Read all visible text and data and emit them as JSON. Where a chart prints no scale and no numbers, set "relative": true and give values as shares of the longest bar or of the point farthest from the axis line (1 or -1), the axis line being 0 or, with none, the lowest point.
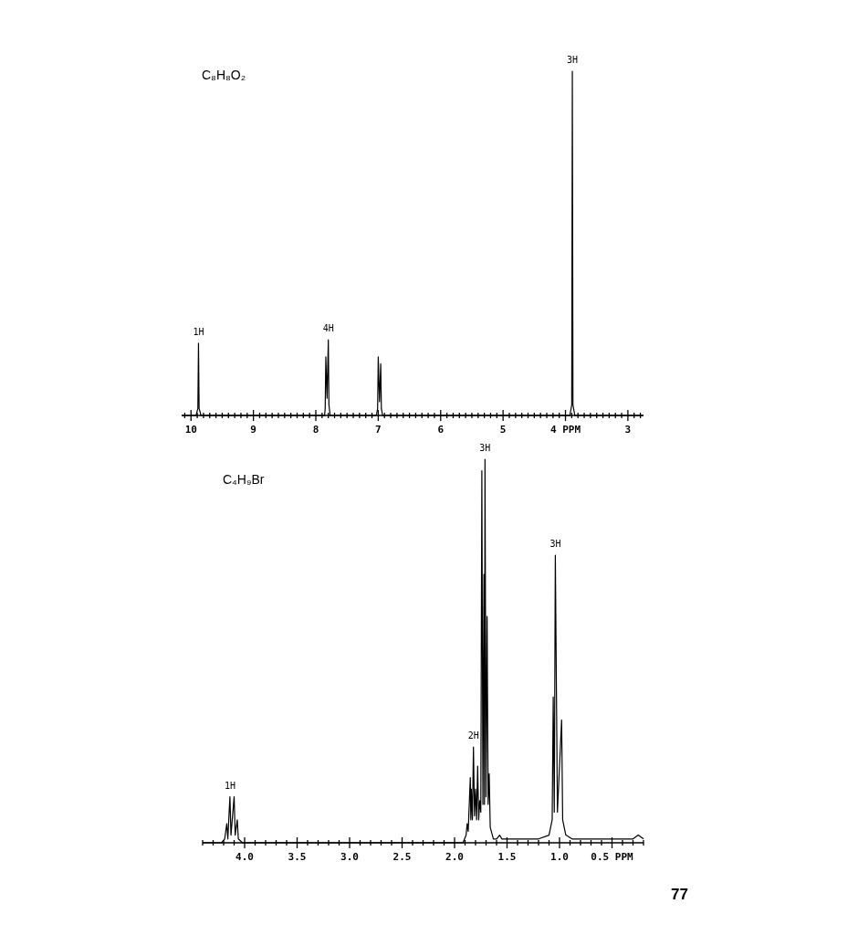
{
  "chart_data": [
    {
      "type": "line",
      "title": "C₈H₈O₂",
      "relative": true,
      "xlim": [
        10.15,
        2.75
      ],
      "xticks": [
        {
          "value": 10.1,
          "label": null
        },
        10,
        {
          "value": 9.9,
          "label": null
        },
        {
          "value": 9.8,
          "label": null
        },
        {
          "value": 9.7,
          "label": null
        },
        {
          "value": 9.6,
          "label": null
        },
        {
          "value": 9.5,
          "label": null
        },
        {
          "value": 9.4,
          "label": null
        },
        {
          "value": 9.3,
          "label": null
        },
        {
          "value": 9.2,
          "label": null
        },
        {
          "value": 9.1,
          "label": null
        },
        9,
        {
          "value": 8.9,
          "label": null
        },
        {
          "value": 8.8,
          "label": null
        },
        {
          "value": 8.7,
          "label": null
        },
        {
          "value": 8.6,
          "label": null
        },
        {
          "value": 8.5,
          "label": null
        },
        {
          "value": 8.4,
          "label": null
        },
        {
          "value": 8.3,
          "label": null
        },
        {
          "value": 8.2,
          "label": null
        },
        {
          "value": 8.1,
          "label": null
        },
        8,
        {
          "value": 7.9,
          "label": null
        },
        {
          "value": 7.8,
          "label": null
        },
        {
          "value": 7.7,
          "label": null
        },
        {
          "value": 7.6,
          "label": null
        },
        {
          "value": 7.5,
          "label": null
        },
        {
          "value": 7.4,
          "label": null
        },
        {
          "value": 7.3,
          "label": null
        },
        {
          "value": 7.2,
          "label": null
        },
        {
          "value": 7.1,
          "label": null
        },
        7,
        {
          "value": 6.9,
          "label": null
        },
        {
          "value": 6.8,
          "label": null
        },
        {
          "value": 6.7,
          "label": null
        },
        {
          "value": 6.6,
          "label": null
        },
        {
          "value": 6.5,
          "label": null
        },
        {
          "value": 6.4,
          "label": null
        },
        {
          "value": 6.3,
          "label": null
        },
        {
          "value": 6.2,
          "label": null
        },
        {
          "value": 6.1,
          "label": null
        },
        6,
        {
          "value": 5.9,
          "label": null
        },
        {
          "value": 5.8,
          "label": null
        },
        {
          "value": 5.7,
          "label": null
        },
        {
          "value": 5.6,
          "label": null
        },
        {
          "value": 5.5,
          "label": null
        },
        {
          "value": 5.4,
          "label": null
        },
        {
          "value": 5.3,
          "label": null
        },
        {
          "value": 5.2,
          "label": null
        },
        {
          "value": 5.1,
          "label": null
        },
        5,
        {
          "value": 4.9,
          "label": null
        },
        {
          "value": 4.8,
          "label": null
        },
        {
          "value": 4.7,
          "label": null
        },
        {
          "value": 4.6,
          "label": null
        },
        {
          "value": 4.5,
          "label": null
        },
        {
          "value": 4.4,
          "label": null
        },
        {
          "value": 4.3,
          "label": null
        },
        {
          "value": 4.2,
          "label": null
        },
        {
          "value": 4.1,
          "label": null
        },
        {
          "value": 4,
          "label": "4 PPM"
        },
        {
          "value": 3.9,
          "label": null
        },
        {
          "value": 3.8,
          "label": null
        },
        {
          "value": 3.7,
          "label": null
        },
        {
          "value": 3.6,
          "label": null
        },
        {
          "value": 3.5,
          "label": null
        },
        {
          "value": 3.4,
          "label": null
        },
        {
          "value": 3.3,
          "label": null
        },
        {
          "value": 3.2,
          "label": null
        },
        {
          "value": 3.1,
          "label": null
        },
        3,
        {
          "value": 2.9,
          "label": null
        },
        {
          "value": 2.8,
          "label": null
        }
      ],
      "series": [
        {
          "color": "#000000",
          "x": [
            10.15,
            9.92,
            9.89,
            9.88,
            9.87,
            9.84,
            7.86,
            7.85,
            7.84,
            7.82,
            7.8,
            7.79,
            7.77,
            7.03,
            7.01,
            7.0,
            6.98,
            6.96,
            6.95,
            6.93,
            3.93,
            3.9,
            3.89,
            3.88,
            3.85,
            2.75
          ],
          "values": [
            0,
            0,
            0.02,
            0.21,
            0.02,
            0,
            0,
            0.02,
            0.17,
            0.05,
            0.22,
            0.03,
            0,
            0,
            0.02,
            0.17,
            0.04,
            0.15,
            0.02,
            0,
            0,
            0.03,
            1.0,
            0.03,
            0,
            0
          ]
        }
      ],
      "annotations": [
        {
          "text": "1H",
          "x": 9.88,
          "y": 0.21
        },
        {
          "text": "4H",
          "x": 7.8,
          "y": 0.22
        },
        {
          "text": "3H",
          "x": 3.89,
          "y": 1.0
        }
      ]
    },
    {
      "type": "line",
      "title": "C₄H₉Br",
      "relative": true,
      "xlim": [
        4.4,
        0.2
      ],
      "xticks": [
        {
          "value": 4.4,
          "label": null
        },
        {
          "value": 4.3,
          "label": null
        },
        {
          "value": 4.2,
          "label": null
        },
        {
          "value": 4.1,
          "label": null
        },
        {
          "value": 4,
          "label": "4.0"
        },
        {
          "value": 3.9,
          "label": null
        },
        {
          "value": 3.8,
          "label": null
        },
        {
          "value": 3.7,
          "label": null
        },
        {
          "value": 3.6,
          "label": null
        },
        3.5,
        {
          "value": 3.4,
          "label": null
        },
        {
          "value": 3.3,
          "label": null
        },
        {
          "value": 3.2,
          "label": null
        },
        {
          "value": 3.1,
          "label": null
        },
        {
          "value": 3,
          "label": "3.0"
        },
        {
          "value": 2.9,
          "label": null
        },
        {
          "value": 2.8,
          "label": null
        },
        {
          "value": 2.7,
          "label": null
        },
        {
          "value": 2.6,
          "label": null
        },
        2.5,
        {
          "value": 2.4,
          "label": null
        },
        {
          "value": 2.3,
          "label": null
        },
        {
          "value": 2.2,
          "label": null
        },
        {
          "value": 2.1,
          "label": null
        },
        {
          "value": 2,
          "label": "2.0"
        },
        {
          "value": 1.9,
          "label": null
        },
        {
          "value": 1.8,
          "label": null
        },
        {
          "value": 1.7,
          "label": null
        },
        {
          "value": 1.6,
          "label": null
        },
        1.5,
        {
          "value": 1.4,
          "label": null
        },
        {
          "value": 1.3,
          "label": null
        },
        {
          "value": 1.2,
          "label": null
        },
        {
          "value": 1.1,
          "label": null
        },
        {
          "value": 1,
          "label": "1.0"
        },
        {
          "value": 0.9,
          "label": null
        },
        {
          "value": 0.8,
          "label": null
        },
        {
          "value": 0.7,
          "label": null
        },
        {
          "value": 0.6,
          "label": null
        },
        {
          "value": 0.5,
          "label": "0.5 PPM"
        },
        {
          "value": 0.4,
          "label": null
        },
        {
          "value": 0.3,
          "label": null
        },
        {
          "value": 0.2,
          "label": null
        }
      ],
      "series": [
        {
          "color": "#000000",
          "x": [
            4.4,
            4.22,
            4.19,
            4.17,
            4.16,
            4.14,
            4.13,
            4.1,
            4.09,
            4.07,
            4.06,
            4.02,
            1.92,
            1.89,
            1.88,
            1.87,
            1.85,
            1.845,
            1.84,
            1.83,
            1.82,
            1.81,
            1.8,
            1.79,
            1.78,
            1.77,
            1.76,
            1.75,
            1.74,
            1.73,
            1.72,
            1.715,
            1.71,
            1.7,
            1.69,
            1.68,
            1.67,
            1.66,
            1.63,
            1.6,
            1.57,
            1.55,
            1.2,
            1.1,
            1.07,
            1.06,
            1.05,
            1.04,
            1.02,
            0.98,
            0.97,
            0.94,
            0.88,
            0.3,
            0.25,
            0.2
          ],
          "values": [
            0,
            0,
            0.01,
            0.05,
            0.01,
            0.12,
            0.02,
            0.12,
            0.02,
            0.06,
            0.01,
            0,
            0,
            0.02,
            0.05,
            0.03,
            0.17,
            0.06,
            0.14,
            0.06,
            0.25,
            0.07,
            0.14,
            0.06,
            0.2,
            0.06,
            0.11,
            0.08,
            0.97,
            0.1,
            0.7,
            0.1,
            1.0,
            0.12,
            0.59,
            0.1,
            0.18,
            0.04,
            0.01,
            0.01,
            0.02,
            0.01,
            0.01,
            0.02,
            0.06,
            0.38,
            0.08,
            0.75,
            0.08,
            0.32,
            0.06,
            0.02,
            0.01,
            0.01,
            0.02,
            0.01
          ]
        }
      ],
      "annotations": [
        {
          "text": "1H",
          "x": 4.14,
          "y": 0.12
        },
        {
          "text": "2H",
          "x": 1.82,
          "y": 0.25
        },
        {
          "text": "3H",
          "x": 1.71,
          "y": 1.0
        },
        {
          "text": "3H",
          "x": 1.04,
          "y": 0.75
        },
        "77"
      ]
    }
  ]
}
